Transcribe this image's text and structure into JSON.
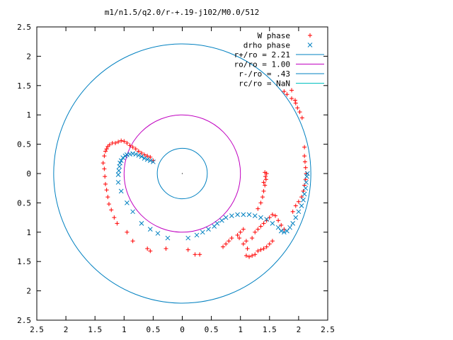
{
  "chart_data": {
    "type": "scatter",
    "title": "m1/n1.5/q2.0/r-+.19-j102/M0.0/512",
    "xlabel": "",
    "ylabel": "",
    "xlim": [
      -2.5,
      2.5
    ],
    "ylim": [
      -2.5,
      2.5
    ],
    "x_tick_values": [
      -2.5,
      -2,
      -1.5,
      -1,
      -0.5,
      0,
      0.5,
      1,
      1.5,
      2,
      2.5
    ],
    "x_tick_labels": [
      "2.5",
      "2",
      "1.5",
      "1",
      "0.5",
      "0",
      "0.5",
      "1",
      "1.5",
      "2",
      "2.5"
    ],
    "y_tick_values": [
      2.5,
      2,
      1.5,
      1,
      0.5,
      0,
      -0.5,
      -1,
      -1.5,
      -2,
      -2.5
    ],
    "y_tick_labels": [
      "2.5",
      "2",
      "1.5",
      "1",
      "0.5",
      "0",
      "0.5",
      "1",
      "1.5",
      "2",
      "2.5"
    ],
    "grid": false,
    "legend_position": "top-right",
    "series": [
      {
        "name": "W phase",
        "marker": "plus",
        "color": "#ff0000",
        "points": [
          [
            -1.36,
            0.18
          ],
          [
            -1.34,
            0.3
          ],
          [
            -1.32,
            0.38
          ],
          [
            -1.3,
            0.42
          ],
          [
            -1.28,
            0.46
          ],
          [
            -1.25,
            0.49
          ],
          [
            -1.2,
            0.52
          ],
          [
            -1.15,
            0.52
          ],
          [
            -1.1,
            0.54
          ],
          [
            -1.05,
            0.56
          ],
          [
            -1.0,
            0.55
          ],
          [
            -0.95,
            0.52
          ],
          [
            -0.9,
            0.48
          ],
          [
            -0.85,
            0.45
          ],
          [
            -0.8,
            0.42
          ],
          [
            -0.75,
            0.38
          ],
          [
            -0.7,
            0.35
          ],
          [
            -0.65,
            0.32
          ],
          [
            -0.6,
            0.3
          ],
          [
            -0.55,
            0.28
          ],
          [
            -0.5,
            0.22
          ],
          [
            -1.34,
            0.08
          ],
          [
            -1.33,
            -0.05
          ],
          [
            -1.32,
            -0.18
          ],
          [
            -1.3,
            -0.28
          ],
          [
            -1.28,
            -0.4
          ],
          [
            -1.26,
            -0.52
          ],
          [
            -1.22,
            -0.62
          ],
          [
            -1.17,
            -0.75
          ],
          [
            -1.12,
            -0.85
          ],
          [
            -0.95,
            -1.0
          ],
          [
            -0.85,
            -1.15
          ],
          [
            -0.6,
            -1.28
          ],
          [
            -0.55,
            -1.32
          ],
          [
            -0.28,
            -1.28
          ],
          [
            0.1,
            -1.3
          ],
          [
            0.22,
            -1.38
          ],
          [
            0.3,
            -1.38
          ],
          [
            0.7,
            -1.25
          ],
          [
            0.75,
            -1.2
          ],
          [
            0.8,
            -1.15
          ],
          [
            0.85,
            -1.1
          ],
          [
            0.95,
            -1.05
          ],
          [
            1.0,
            -1.0
          ],
          [
            1.05,
            -0.95
          ],
          [
            0.98,
            -1.1
          ],
          [
            1.05,
            -1.2
          ],
          [
            1.1,
            -1.15
          ],
          [
            1.12,
            -1.28
          ],
          [
            1.1,
            -1.4
          ],
          [
            1.15,
            -1.42
          ],
          [
            1.2,
            -1.4
          ],
          [
            1.25,
            -1.38
          ],
          [
            1.3,
            -1.32
          ],
          [
            1.35,
            -1.3
          ],
          [
            1.4,
            -1.28
          ],
          [
            1.45,
            -1.25
          ],
          [
            1.5,
            -1.2
          ],
          [
            1.55,
            -1.15
          ],
          [
            1.2,
            -1.1
          ],
          [
            1.25,
            -1.0
          ],
          [
            1.3,
            -0.95
          ],
          [
            1.35,
            -0.9
          ],
          [
            1.4,
            -0.85
          ],
          [
            1.45,
            -0.8
          ],
          [
            1.5,
            -0.75
          ],
          [
            1.55,
            -0.7
          ],
          [
            1.6,
            -0.72
          ],
          [
            1.65,
            -0.8
          ],
          [
            1.7,
            -0.88
          ],
          [
            1.75,
            -0.95
          ],
          [
            1.3,
            -0.6
          ],
          [
            1.35,
            -0.5
          ],
          [
            1.38,
            -0.4
          ],
          [
            1.4,
            -0.3
          ],
          [
            1.42,
            -0.2
          ],
          [
            1.44,
            -0.1
          ],
          [
            1.45,
            0.0
          ],
          [
            1.43,
            -0.05
          ],
          [
            1.4,
            -0.15
          ],
          [
            1.42,
            0.02
          ],
          [
            1.9,
            -0.65
          ],
          [
            1.95,
            -0.55
          ],
          [
            2.0,
            -0.48
          ],
          [
            2.05,
            -0.4
          ],
          [
            2.08,
            -0.3
          ],
          [
            2.1,
            -0.2
          ],
          [
            2.12,
            -0.1
          ],
          [
            2.13,
            0.0
          ],
          [
            2.12,
            0.1
          ],
          [
            2.11,
            0.2
          ],
          [
            2.1,
            0.3
          ],
          [
            2.06,
            0.95
          ],
          [
            2.02,
            1.05
          ],
          [
            1.95,
            1.2
          ],
          [
            1.88,
            1.28
          ],
          [
            1.8,
            1.35
          ],
          [
            1.75,
            1.4
          ],
          [
            1.88,
            1.42
          ],
          [
            1.94,
            1.25
          ],
          [
            1.98,
            1.12
          ],
          [
            2.1,
            0.45
          ]
        ]
      },
      {
        "name": "drho phase",
        "marker": "cross",
        "color": "#0080c0",
        "points": [
          [
            -1.08,
            0.12
          ],
          [
            -1.07,
            0.18
          ],
          [
            -1.05,
            0.22
          ],
          [
            -1.02,
            0.27
          ],
          [
            -0.98,
            0.3
          ],
          [
            -0.95,
            0.32
          ],
          [
            -0.9,
            0.33
          ],
          [
            -0.85,
            0.34
          ],
          [
            -0.8,
            0.33
          ],
          [
            -0.75,
            0.31
          ],
          [
            -0.7,
            0.29
          ],
          [
            -0.65,
            0.26
          ],
          [
            -0.6,
            0.24
          ],
          [
            -0.55,
            0.22
          ],
          [
            -0.5,
            0.2
          ],
          [
            -1.09,
            0.05
          ],
          [
            -1.1,
            -0.02
          ],
          [
            -1.1,
            -0.15
          ],
          [
            -1.05,
            -0.3
          ],
          [
            -0.95,
            -0.5
          ],
          [
            -0.85,
            -0.65
          ],
          [
            -0.7,
            -0.85
          ],
          [
            -0.55,
            -0.95
          ],
          [
            -0.42,
            -1.02
          ],
          [
            -0.25,
            -1.1
          ],
          [
            0.1,
            -1.1
          ],
          [
            0.25,
            -1.05
          ],
          [
            0.35,
            -1.0
          ],
          [
            0.45,
            -0.95
          ],
          [
            0.55,
            -0.9
          ],
          [
            0.6,
            -0.85
          ],
          [
            0.68,
            -0.8
          ],
          [
            0.75,
            -0.75
          ],
          [
            0.85,
            -0.72
          ],
          [
            0.95,
            -0.7
          ],
          [
            1.05,
            -0.7
          ],
          [
            1.15,
            -0.7
          ],
          [
            1.25,
            -0.72
          ],
          [
            1.35,
            -0.75
          ],
          [
            1.45,
            -0.78
          ],
          [
            1.55,
            -0.85
          ],
          [
            1.65,
            -0.92
          ],
          [
            1.7,
            -0.98
          ],
          [
            1.75,
            -1.0
          ],
          [
            1.8,
            -0.98
          ],
          [
            1.85,
            -0.92
          ],
          [
            1.9,
            -0.85
          ],
          [
            1.95,
            -0.75
          ],
          [
            2.0,
            -0.65
          ],
          [
            2.05,
            -0.55
          ],
          [
            2.08,
            -0.45
          ],
          [
            2.1,
            -0.35
          ],
          [
            2.12,
            -0.25
          ],
          [
            2.13,
            -0.15
          ],
          [
            2.14,
            -0.05
          ],
          [
            2.15,
            0.0
          ]
        ]
      }
    ],
    "circles": [
      {
        "name": "r+/ro = 2.21",
        "radius": 2.21,
        "color": "#0080c0"
      },
      {
        "name": "ro/ro = 1.00",
        "radius": 1.0,
        "color": "#c000c0"
      },
      {
        "name": "r-/ro = .43",
        "radius": 0.43,
        "color": "#0080c0"
      },
      {
        "name": "rc/ro = NaN",
        "radius": null,
        "color": "#00c0c0"
      }
    ]
  }
}
